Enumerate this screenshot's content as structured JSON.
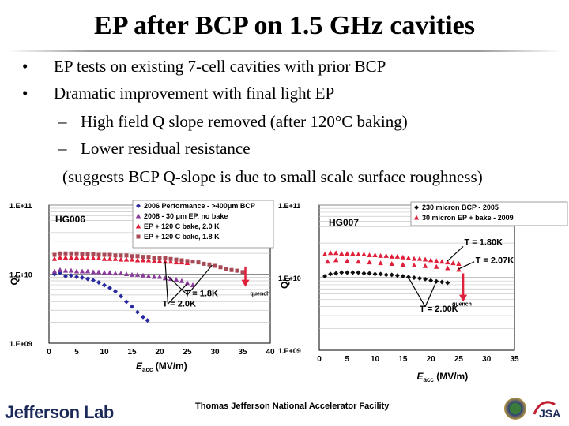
{
  "slide": {
    "title": "EP after BCP on 1.5 GHz cavities",
    "bullets": [
      {
        "marker": "•",
        "text": "EP tests on existing 7-cell cavities with prior BCP"
      },
      {
        "marker": "•",
        "text": "Dramatic improvement with final light EP"
      },
      {
        "marker": "–",
        "text": "High field Q slope removed (after 120°C baking)"
      },
      {
        "marker": "–",
        "text": "Lower residual resistance"
      },
      {
        "marker": "",
        "text": "(suggests BCP Q-slope is due to small scale surface roughness)"
      }
    ]
  },
  "footer": {
    "logo_text": "Jefferson Lab",
    "facility_text": "Thomas Jefferson National Accelerator Facility",
    "jsa_text": "JSA"
  },
  "colors": {
    "title": "#000000",
    "red": "#e0203a",
    "maroon": "#a84a55",
    "purple": "#8a3a9a",
    "blue": "#2a2aa0",
    "black": "#101010"
  },
  "chart_data": [
    {
      "type": "scatter",
      "cavity_label": "HG006",
      "xlabel": "Eacc (MV/m)",
      "ylabel": "Q0",
      "xlim": [
        0,
        40
      ],
      "ylim_log10": [
        9,
        11
      ],
      "x_ticks": [
        0,
        5,
        10,
        15,
        20,
        25,
        30,
        35,
        40
      ],
      "y_ticks": [
        "1.E+09",
        "1.E+10",
        "1.E+11"
      ],
      "legend_placement": "top-right",
      "series": [
        {
          "name": "2006 Performance - >400μm BCP",
          "color": "#2a2aa0",
          "marker": "diamond",
          "points": [
            [
              1,
              10.0
            ],
            [
              2,
              10.02
            ],
            [
              3,
              9.97
            ],
            [
              4,
              9.98
            ],
            [
              5,
              9.96
            ],
            [
              6,
              9.95
            ],
            [
              7,
              9.93
            ],
            [
              8,
              9.91
            ],
            [
              9,
              9.88
            ],
            [
              10,
              9.84
            ],
            [
              11,
              9.8
            ],
            [
              12,
              9.75
            ],
            [
              13,
              9.68
            ],
            [
              14,
              9.6
            ],
            [
              15,
              9.53
            ],
            [
              16,
              9.45
            ],
            [
              17,
              9.38
            ],
            [
              17.8,
              9.33
            ]
          ]
        },
        {
          "name": "2008 - 30 μm EP, no bake",
          "color": "#8a3a9a",
          "marker": "triangle",
          "points": [
            [
              1,
              10.04
            ],
            [
              2,
              10.06
            ],
            [
              3,
              10.05
            ],
            [
              4,
              10.05
            ],
            [
              5,
              10.04
            ],
            [
              6,
              10.04
            ],
            [
              7,
              10.04
            ],
            [
              8,
              10.03
            ],
            [
              9,
              10.03
            ],
            [
              10,
              10.02
            ],
            [
              11,
              10.02
            ],
            [
              12,
              10.01
            ],
            [
              13,
              10.01
            ],
            [
              14,
              10.0
            ],
            [
              15,
              9.99
            ],
            [
              16,
              9.99
            ],
            [
              17,
              9.98
            ],
            [
              18,
              9.97
            ],
            [
              19,
              9.96
            ],
            [
              20,
              9.96
            ],
            [
              21,
              9.94
            ],
            [
              22,
              9.93
            ],
            [
              23,
              9.92
            ],
            [
              24,
              9.9
            ],
            [
              25,
              9.87
            ],
            [
              26,
              9.84
            ]
          ]
        },
        {
          "name": "EP + 120 C bake, 2.0 K",
          "color": "#e0203a",
          "marker": "triangle",
          "points": [
            [
              1,
              10.22
            ],
            [
              2,
              10.24
            ],
            [
              3,
              10.24
            ],
            [
              4,
              10.24
            ],
            [
              5,
              10.24
            ],
            [
              6,
              10.24
            ],
            [
              7,
              10.23
            ],
            [
              8,
              10.23
            ],
            [
              9,
              10.23
            ],
            [
              10,
              10.22
            ],
            [
              11,
              10.22
            ],
            [
              12,
              10.22
            ],
            [
              13,
              10.21
            ],
            [
              14,
              10.21
            ],
            [
              15,
              10.21
            ],
            [
              16,
              10.2
            ],
            [
              17,
              10.2
            ],
            [
              18,
              10.2
            ],
            [
              19,
              10.19
            ],
            [
              20,
              10.19
            ],
            [
              21,
              10.18
            ],
            [
              22,
              10.18
            ],
            [
              23,
              10.17
            ],
            [
              24,
              10.17
            ],
            [
              25,
              10.16
            ]
          ]
        },
        {
          "name": "EP + 120 C bake, 1.8 K",
          "color": "#a84a55",
          "marker": "square",
          "points": [
            [
              1,
              10.28
            ],
            [
              2,
              10.3
            ],
            [
              3,
              10.3
            ],
            [
              4,
              10.3
            ],
            [
              5,
              10.3
            ],
            [
              6,
              10.29
            ],
            [
              7,
              10.29
            ],
            [
              8,
              10.29
            ],
            [
              9,
              10.28
            ],
            [
              10,
              10.28
            ],
            [
              11,
              10.28
            ],
            [
              12,
              10.27
            ],
            [
              13,
              10.27
            ],
            [
              14,
              10.27
            ],
            [
              15,
              10.26
            ],
            [
              16,
              10.26
            ],
            [
              17,
              10.25
            ],
            [
              18,
              10.25
            ],
            [
              19,
              10.24
            ],
            [
              20,
              10.23
            ],
            [
              21,
              10.23
            ],
            [
              22,
              10.22
            ],
            [
              23,
              10.21
            ],
            [
              24,
              10.2
            ],
            [
              25,
              10.19
            ],
            [
              26,
              10.18
            ],
            [
              27,
              10.17
            ],
            [
              28,
              10.15
            ],
            [
              29,
              10.14
            ],
            [
              30,
              10.12
            ],
            [
              31,
              10.1
            ],
            [
              32,
              10.08
            ],
            [
              33,
              10.06
            ],
            [
              34,
              10.05
            ],
            [
              35,
              10.03
            ]
          ]
        }
      ],
      "quench_label": "quench",
      "quench_x": 35.5,
      "annotations": [
        {
          "text": "T = 1.8K",
          "x": 24.5,
          "y": 9.68
        },
        {
          "text": "T = 2.0K",
          "x": 20.5,
          "y": 9.53
        }
      ]
    },
    {
      "type": "scatter",
      "cavity_label": "HG007",
      "xlabel": "Eacc (MV/m)",
      "ylabel": "Q0",
      "xlim": [
        0,
        35
      ],
      "ylim_log10": [
        9,
        11
      ],
      "x_ticks": [
        0,
        5,
        10,
        15,
        20,
        25,
        30,
        35
      ],
      "y_ticks": [
        "1.E+09",
        "1.E+10",
        "1.E+11"
      ],
      "legend_placement": "top-right",
      "series": [
        {
          "name": "230 micron BCP - 2005",
          "color": "#101010",
          "marker": "diamond",
          "points": [
            [
              1,
              10.02
            ],
            [
              2,
              10.05
            ],
            [
              3,
              10.06
            ],
            [
              4,
              10.07
            ],
            [
              5,
              10.07
            ],
            [
              6,
              10.07
            ],
            [
              7,
              10.07
            ],
            [
              8,
              10.06
            ],
            [
              9,
              10.06
            ],
            [
              10,
              10.05
            ],
            [
              11,
              10.05
            ],
            [
              12,
              10.04
            ],
            [
              13,
              10.04
            ],
            [
              14,
              10.03
            ],
            [
              15,
              10.02
            ],
            [
              16,
              10.01
            ],
            [
              17,
              10.0
            ],
            [
              18,
              9.99
            ],
            [
              19,
              9.98
            ],
            [
              20,
              9.96
            ],
            [
              21,
              9.95
            ],
            [
              22,
              9.94
            ],
            [
              23,
              9.93
            ]
          ]
        },
        {
          "name": "30 micron EP + bake - 2009",
          "color": "#e0203a",
          "marker": "triangle",
          "points": [
            [
              1,
              10.32
            ],
            [
              2,
              10.34
            ],
            [
              3,
              10.34
            ],
            [
              4,
              10.33
            ],
            [
              5,
              10.33
            ],
            [
              6,
              10.33
            ],
            [
              7,
              10.32
            ],
            [
              8,
              10.32
            ],
            [
              9,
              10.31
            ],
            [
              10,
              10.31
            ],
            [
              11,
              10.3
            ],
            [
              12,
              10.3
            ],
            [
              13,
              10.29
            ],
            [
              14,
              10.29
            ],
            [
              15,
              10.28
            ],
            [
              16,
              10.27
            ],
            [
              17,
              10.26
            ],
            [
              18,
              10.26
            ],
            [
              19,
              10.25
            ],
            [
              20,
              10.24
            ],
            [
              21,
              10.23
            ],
            [
              22,
              10.22
            ],
            [
              23,
              10.21
            ],
            [
              24,
              10.2
            ],
            [
              25,
              10.19
            ],
            [
              1.5,
              10.22
            ],
            [
              3,
              10.24
            ],
            [
              5,
              10.23
            ],
            [
              7,
              10.22
            ],
            [
              9,
              10.21
            ],
            [
              11,
              10.2
            ],
            [
              13,
              10.19
            ],
            [
              15,
              10.18
            ],
            [
              17,
              10.17
            ],
            [
              19,
              10.16
            ],
            [
              21,
              10.15
            ],
            [
              23,
              10.13
            ],
            [
              25,
              10.11
            ]
          ]
        }
      ],
      "quench_label": "quench",
      "quench_x": 25.8,
      "annotations": [
        {
          "text": "T = 1.80K",
          "x": 26,
          "y": 10.45
        },
        {
          "text": "T = 2.07K",
          "x": 28,
          "y": 10.2
        },
        {
          "text": "T = 2.00K",
          "x": 18,
          "y": 9.53
        }
      ]
    }
  ]
}
